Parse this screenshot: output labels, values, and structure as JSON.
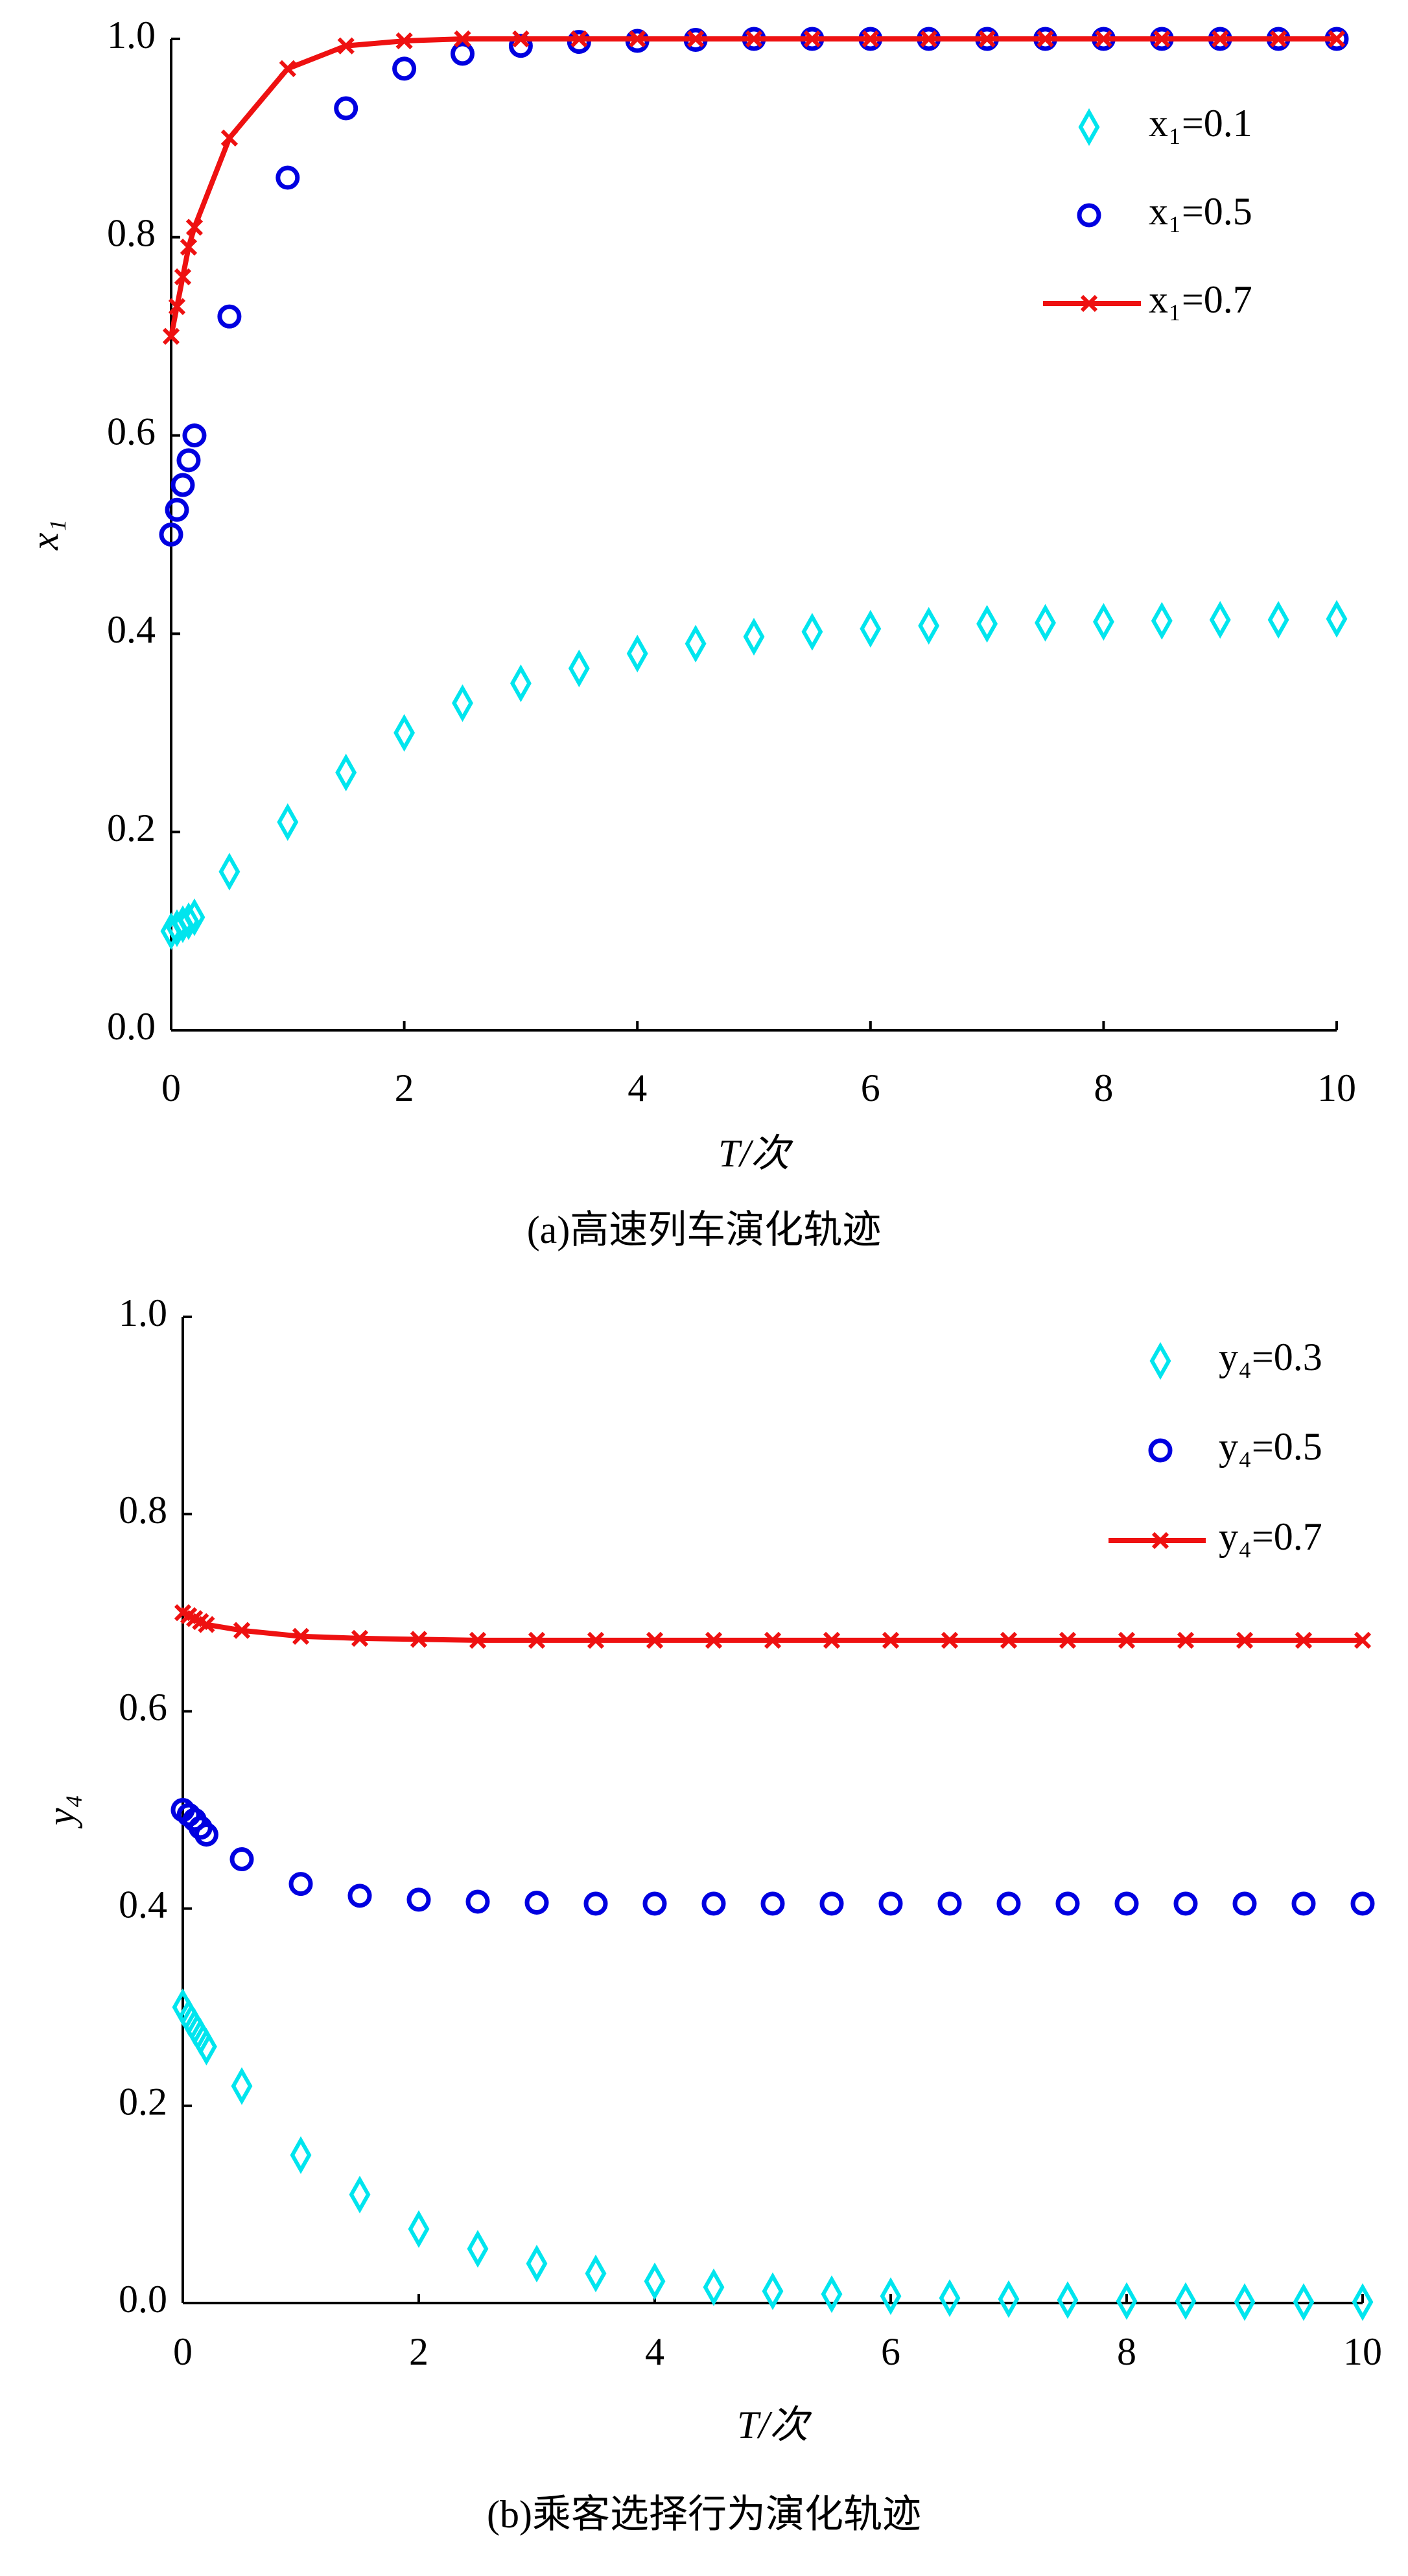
{
  "chart_data": [
    {
      "type": "line",
      "xlabel": "T/次",
      "ylabel": "x₁",
      "caption": "(a)高速列车演化轨迹",
      "x": [
        0,
        0.05,
        0.1,
        0.15,
        0.2,
        0.5,
        1,
        1.5,
        2,
        2.5,
        3,
        3.5,
        4,
        4.5,
        5,
        5.5,
        6,
        6.5,
        7,
        7.5,
        8,
        8.5,
        9,
        9.5,
        10
      ],
      "xlim": [
        0,
        10
      ],
      "xticks": [
        0,
        2,
        4,
        6,
        8,
        10
      ],
      "ylim": [
        0,
        1
      ],
      "yticks": [
        {
          "value": 0,
          "label": "0.0"
        },
        0.2,
        0.4,
        0.6,
        0.8,
        {
          "value": 1,
          "label": "1.0"
        }
      ],
      "legend": "upper right",
      "series": [
        {
          "name": "x₁=0.1",
          "color": "#00e5ee",
          "marker": "diamond",
          "line": false,
          "values": [
            0.1,
            0.103,
            0.107,
            0.11,
            0.114,
            0.16,
            0.21,
            0.26,
            0.3,
            0.33,
            0.35,
            0.365,
            0.38,
            0.39,
            0.397,
            0.402,
            0.405,
            0.408,
            0.41,
            0.411,
            0.412,
            0.413,
            0.414,
            0.414,
            0.415
          ]
        },
        {
          "name": "x₁=0.5",
          "color": "#0000e0",
          "marker": "circle",
          "line": false,
          "values": [
            0.5,
            0.525,
            0.55,
            0.575,
            0.6,
            0.72,
            0.86,
            0.93,
            0.97,
            0.985,
            0.993,
            0.997,
            0.998,
            0.999,
            1,
            1,
            1,
            1,
            1,
            1,
            1,
            1,
            1,
            1,
            1
          ]
        },
        {
          "name": "x₁=0.7",
          "color": "#ee1111",
          "marker": "x",
          "line": true,
          "values": [
            0.7,
            0.73,
            0.76,
            0.79,
            0.81,
            0.9,
            0.97,
            0.993,
            0.998,
            1,
            1,
            1,
            1,
            1,
            1,
            1,
            1,
            1,
            1,
            1,
            1,
            1,
            1,
            1,
            1
          ]
        }
      ]
    },
    {
      "type": "line",
      "xlabel": "T/次",
      "ylabel": "y₄",
      "caption": "(b)乘客选择行为演化轨迹",
      "x": [
        0,
        0.05,
        0.1,
        0.15,
        0.2,
        0.5,
        1,
        1.5,
        2,
        2.5,
        3,
        3.5,
        4,
        4.5,
        5,
        5.5,
        6,
        6.5,
        7,
        7.5,
        8,
        8.5,
        9,
        9.5,
        10
      ],
      "xlim": [
        0,
        10
      ],
      "xticks": [
        0,
        2,
        4,
        6,
        8,
        10
      ],
      "ylim": [
        0,
        1
      ],
      "yticks": [
        {
          "value": 0,
          "label": "0.0"
        },
        0.2,
        0.4,
        0.6,
        0.8,
        {
          "value": 1,
          "label": "1.0"
        }
      ],
      "legend": "upper right",
      "series": [
        {
          "name": "y₄=0.3",
          "color": "#00e5ee",
          "marker": "diamond",
          "line": false,
          "values": [
            0.3,
            0.29,
            0.28,
            0.27,
            0.26,
            0.22,
            0.15,
            0.11,
            0.075,
            0.055,
            0.04,
            0.03,
            0.022,
            0.016,
            0.012,
            0.009,
            0.007,
            0.005,
            0.004,
            0.003,
            0.002,
            0.002,
            0.001,
            0.001,
            0.001
          ]
        },
        {
          "name": "y₄=0.5",
          "color": "#0000e0",
          "marker": "circle",
          "line": false,
          "values": [
            0.5,
            0.495,
            0.49,
            0.482,
            0.475,
            0.45,
            0.425,
            0.413,
            0.409,
            0.407,
            0.406,
            0.405,
            0.405,
            0.405,
            0.405,
            0.405,
            0.405,
            0.405,
            0.405,
            0.405,
            0.405,
            0.405,
            0.405,
            0.405,
            0.405
          ]
        },
        {
          "name": "y₄=0.7",
          "color": "#ee1111",
          "marker": "x",
          "line": true,
          "values": [
            0.7,
            0.697,
            0.694,
            0.691,
            0.688,
            0.682,
            0.676,
            0.674,
            0.673,
            0.672,
            0.672,
            0.672,
            0.672,
            0.672,
            0.672,
            0.672,
            0.672,
            0.672,
            0.672,
            0.672,
            0.672,
            0.672,
            0.672,
            0.672,
            0.672
          ]
        }
      ]
    }
  ]
}
